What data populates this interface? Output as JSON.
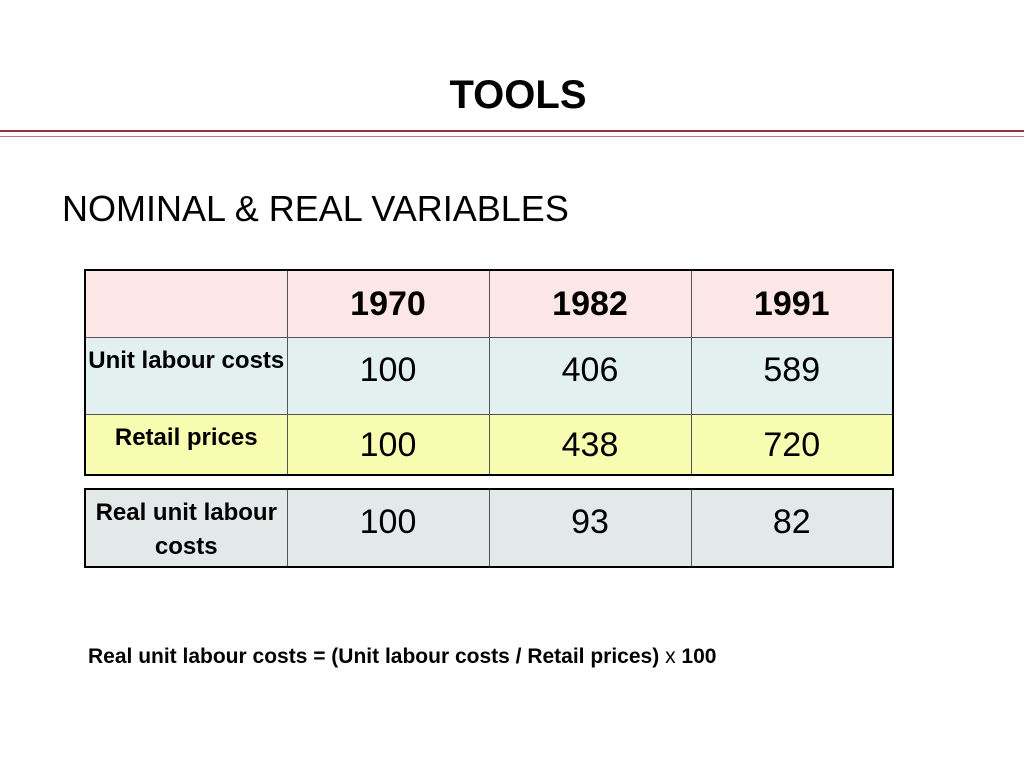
{
  "slide": {
    "title": "TOOLS",
    "subtitle": "NOMINAL & REAL VARIABLES"
  },
  "table": {
    "header": [
      "",
      "1970",
      "1982",
      "1991"
    ],
    "rows": [
      {
        "label": "Unit labour costs",
        "values": [
          "100",
          "406",
          "589"
        ]
      },
      {
        "label": "Retail prices",
        "values": [
          "100",
          "438",
          "720"
        ]
      }
    ]
  },
  "real_table": {
    "rows": [
      {
        "label": "Real unit labour costs",
        "values": [
          "100",
          "93",
          "82"
        ]
      }
    ]
  },
  "formula": {
    "left": "Real unit labour costs = (Unit labour costs / Retail prices)",
    "operator": "x",
    "right": "100"
  },
  "colors": {
    "accent_rule": "#993344",
    "header_bg": "#fde6e6",
    "ulc_bg": "#e2f0f0",
    "rp_bg": "#f8fcb0",
    "real_bg": "#e3e8e9"
  }
}
